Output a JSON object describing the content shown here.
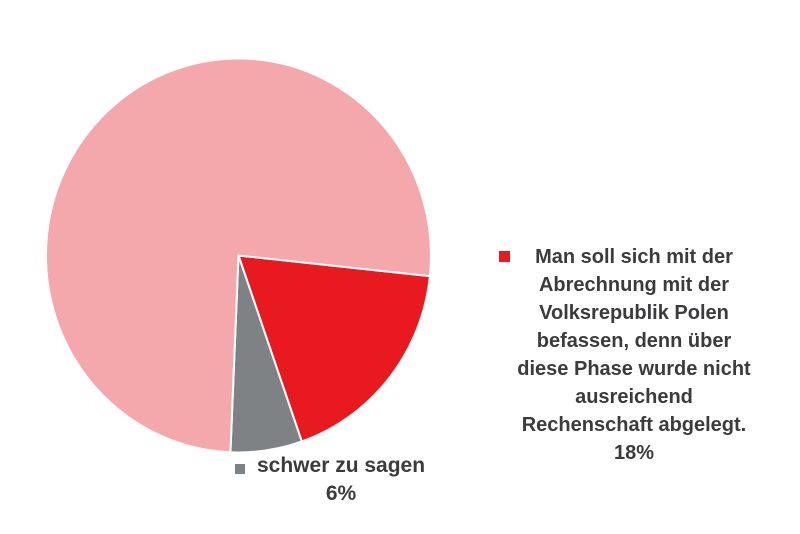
{
  "background_color": "#ffffff",
  "text_color": "#3b3b3d",
  "separator_color": "#ffffff",
  "chart_data": {
    "type": "pie",
    "title": "",
    "start_angle_deg_clockwise_from_north": 96,
    "legend_position": "right (red slice) and below (gray slice); largest slice unlabeled",
    "slices": [
      {
        "id": "abrechnung-volksrepublik-polen",
        "label": "Man soll sich mit der Abrechnung mit der Volksrepublik Polen befassen, denn über diese Phase wurde nicht ausreichend Rechenschaft abgelegt.",
        "value_pct": 18,
        "color": "#e8191f"
      },
      {
        "id": "schwer-zu-sagen",
        "label": "schwer zu sagen",
        "value_pct": 6,
        "color": "#7f8284"
      },
      {
        "id": "unlabeled-remainder",
        "label": "",
        "value_pct": 76,
        "color": "#f4a8ac"
      }
    ]
  },
  "legend_right": {
    "marker_color": "#e8191f",
    "lines": [
      "Man soll sich mit der",
      "Abrechnung mit der",
      "Volksrepublik Polen",
      "befassen, denn über",
      "diese Phase wurde nicht",
      "ausreichend",
      "Rechenschaft abgelegt."
    ],
    "value_label": "18%"
  },
  "legend_bottom": {
    "marker_color": "#7f8284",
    "label": "schwer zu sagen",
    "value_label": "6%"
  }
}
